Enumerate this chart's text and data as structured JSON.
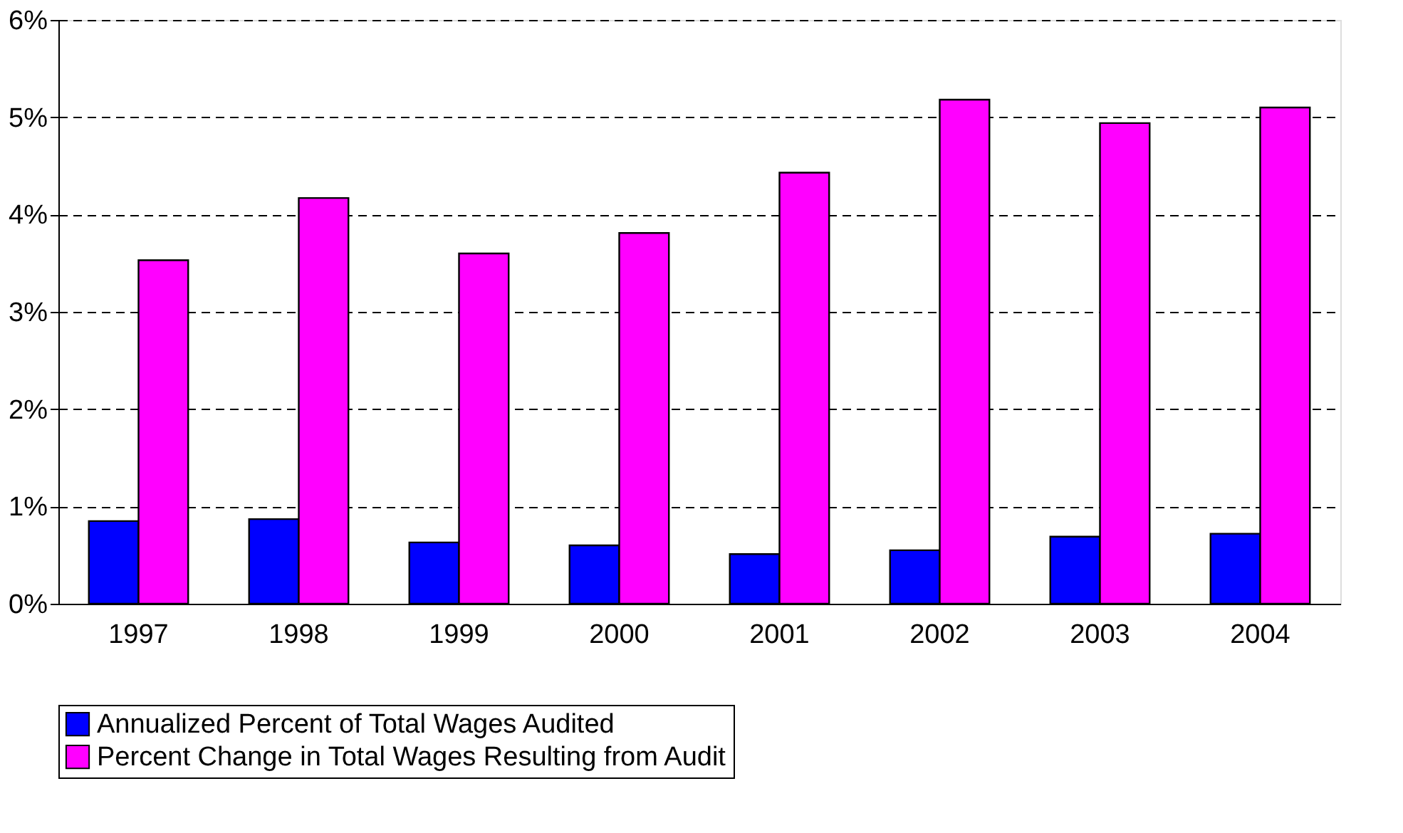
{
  "chart_data": {
    "type": "bar",
    "categories": [
      "1997",
      "1998",
      "1999",
      "2000",
      "2001",
      "2002",
      "2003",
      "2004"
    ],
    "series": [
      {
        "name": "Annualized Percent of Total Wages Audited",
        "color": "#0000ff",
        "values": [
          0.85,
          0.87,
          0.63,
          0.6,
          0.51,
          0.55,
          0.69,
          0.72
        ]
      },
      {
        "name": "Percent Change in Total Wages Resulting from Audit",
        "color": "#ff00ff",
        "values": [
          3.53,
          4.17,
          3.6,
          3.81,
          4.43,
          5.18,
          4.94,
          5.1
        ]
      }
    ],
    "ylim": [
      0,
      6
    ],
    "yticks": [
      {
        "value": 0,
        "label": "0%"
      },
      {
        "value": 1,
        "label": "1%"
      },
      {
        "value": 2,
        "label": "2%"
      },
      {
        "value": 3,
        "label": "3%"
      },
      {
        "value": 4,
        "label": "4%"
      },
      {
        "value": 5,
        "label": "5%"
      },
      {
        "value": 6,
        "label": "6%"
      }
    ],
    "grid": "y",
    "legend": "bottom"
  }
}
